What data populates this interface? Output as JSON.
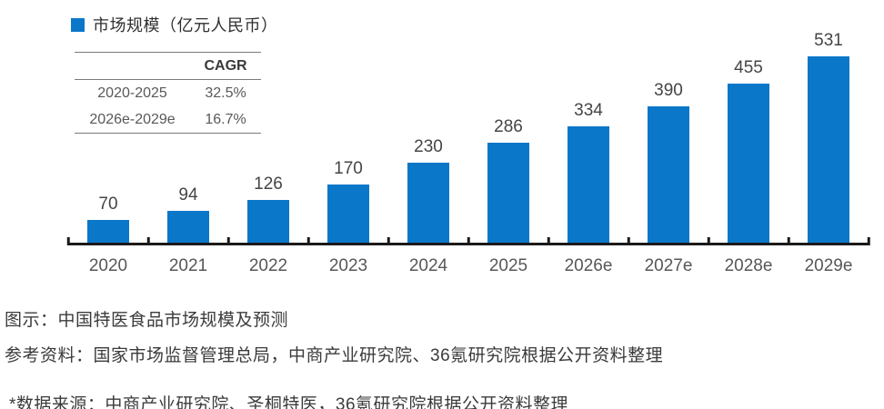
{
  "legend": {
    "label": "市场规模（亿元人民币）",
    "swatch_color": "#0b77c9"
  },
  "cagr_table": {
    "header": "CAGR",
    "rows": [
      {
        "period": "2020-2025",
        "cagr": "32.5%"
      },
      {
        "period": "2026e-2029e",
        "cagr": "16.7%"
      }
    ]
  },
  "chart_data": {
    "type": "bar",
    "title": "中国特医食品市场规模及预测",
    "series_name": "市场规模（亿元人民币）",
    "unit": "亿元人民币",
    "categories": [
      "2020",
      "2021",
      "2022",
      "2023",
      "2024",
      "2025",
      "2026e",
      "2027e",
      "2028e",
      "2029e"
    ],
    "values": [
      70,
      94,
      126,
      170,
      230,
      286,
      334,
      390,
      455,
      531
    ],
    "bar_color": "#0b77c9",
    "ylim": [
      0,
      560
    ],
    "grid": false,
    "legend_position": "top-left",
    "value_labels": true
  },
  "captions": {
    "title": "图示：中国特医食品市场规模及预测",
    "reference": "参考资料：国家市场监督管理总局，中商产业研究院、36氪研究院根据公开资料整理",
    "source": "*数据来源：中商产业研究院、圣桐特医，36氪研究院根据公开资料整理"
  }
}
